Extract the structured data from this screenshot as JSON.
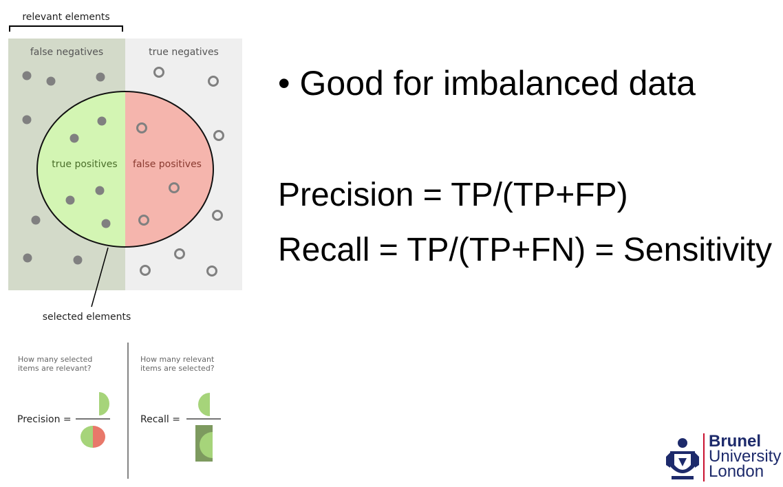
{
  "diagram": {
    "relevant_label": "relevant elements",
    "false_negatives": "false negatives",
    "true_negatives": "true negatives",
    "true_positives": "true positives",
    "false_positives": "false positives",
    "selected_label": "selected elements",
    "precision_question_1": "How many selected",
    "precision_question_2": "items are relevant?",
    "recall_question_1": "How many relevant",
    "recall_question_2": "items are selected?",
    "precision_label": "Precision =",
    "recall_label": "Recall =",
    "colors": {
      "relevant_bg": "#d3dac9",
      "irrelevant_bg": "#efefef",
      "true_positive": "#d3f5b3",
      "false_positive": "#f5b5ad",
      "dot": "#808080"
    }
  },
  "slide": {
    "bullet": "•",
    "bullet_text": "Good for imbalanced data",
    "precision_formula": "Precision =  TP/(TP+FP)",
    "recall_formula": "Recall = TP/(TP+FN) = Sensitivity"
  },
  "logo": {
    "line1": "Brunel",
    "line2": "University",
    "line3": "London"
  }
}
